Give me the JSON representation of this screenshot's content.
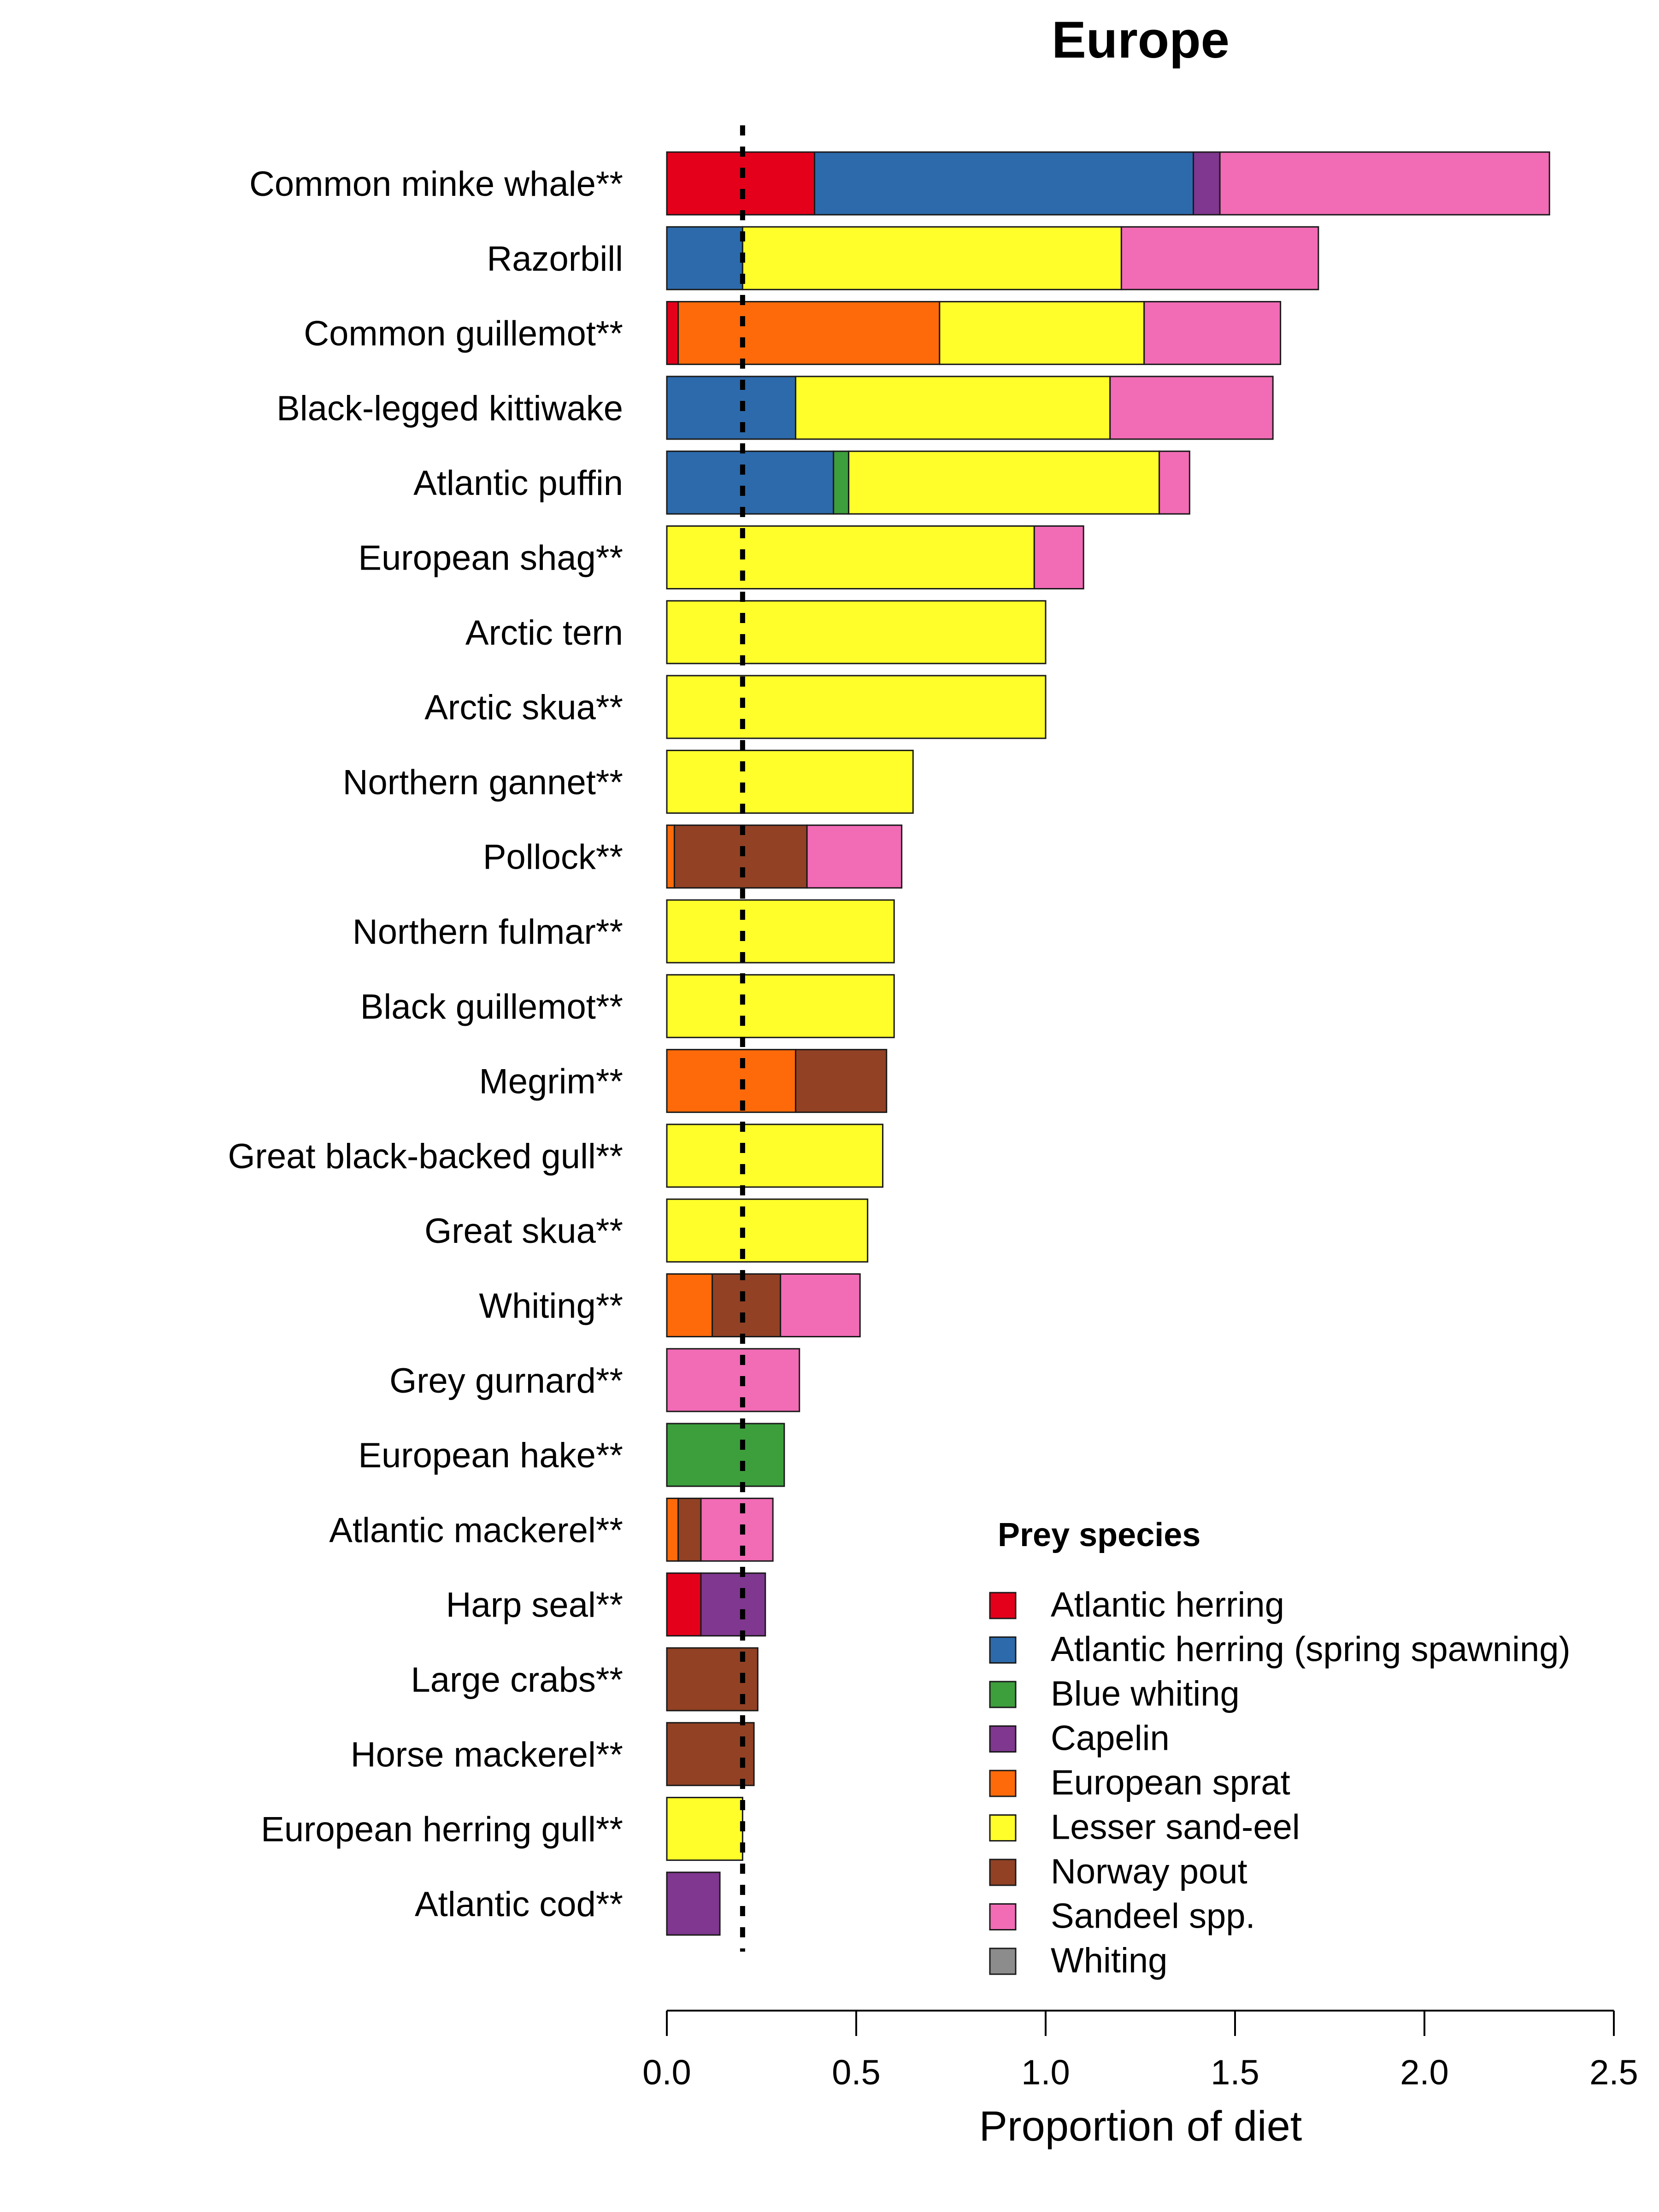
{
  "chart_data": {
    "type": "bar",
    "orientation": "horizontal",
    "stacked": true,
    "title": "Europe",
    "xlabel": "Proportion of diet",
    "ylabel": "",
    "xlim": [
      0,
      2.5
    ],
    "xticks": [
      "0.0",
      "0.5",
      "1.0",
      "1.5",
      "2.0",
      "2.5"
    ],
    "reference_line": {
      "x": 0.2,
      "style": "dotted"
    },
    "categories": [
      "Common minke whale**",
      "Razorbill",
      "Common guillemot**",
      "Black-legged kittiwake",
      "Atlantic puffin",
      "European shag**",
      "Arctic tern",
      "Arctic skua**",
      "Northern gannet**",
      "Pollock**",
      "Northern fulmar**",
      "Black guillemot**",
      "Megrim**",
      "Great black-backed gull**",
      "Great skua**",
      "Whiting**",
      "Grey gurnard**",
      "European hake**",
      "Atlantic mackerel**",
      "Harp seal**",
      "Large crabs**",
      "Horse mackerel**",
      "European herring gull**",
      "Atlantic cod**"
    ],
    "series": [
      {
        "name": "Atlantic herring",
        "color": "#e4001b",
        "values": [
          0.39,
          0,
          0.03,
          0,
          0,
          0,
          0,
          0,
          0,
          0,
          0,
          0,
          0,
          0,
          0,
          0,
          0,
          0,
          0,
          0.09,
          0,
          0,
          0,
          0
        ]
      },
      {
        "name": "Atlantic herring (spring spawning)",
        "color": "#2c6aac",
        "values": [
          1.0,
          0.2,
          0,
          0.34,
          0.44,
          0,
          0,
          0,
          0,
          0,
          0,
          0,
          0,
          0,
          0,
          0,
          0,
          0,
          0,
          0,
          0,
          0,
          0,
          0
        ]
      },
      {
        "name": "Blue whiting",
        "color": "#3c9f3c",
        "values": [
          0,
          0,
          0,
          0,
          0.04,
          0,
          0,
          0,
          0,
          0,
          0,
          0,
          0,
          0,
          0,
          0,
          0,
          0.31,
          0,
          0,
          0,
          0,
          0,
          0
        ]
      },
      {
        "name": "Capelin",
        "color": "#7f378f",
        "values": [
          0.07,
          0,
          0,
          0,
          0,
          0,
          0,
          0,
          0,
          0,
          0,
          0,
          0,
          0,
          0,
          0,
          0,
          0,
          0,
          0.17,
          0,
          0,
          0,
          0.14
        ]
      },
      {
        "name": "European sprat",
        "color": "#fe6a0a",
        "values": [
          0,
          0,
          0.69,
          0,
          0,
          0,
          0,
          0,
          0,
          0.02,
          0,
          0,
          0.34,
          0,
          0,
          0.12,
          0,
          0,
          0.03,
          0,
          0,
          0,
          0,
          0
        ]
      },
      {
        "name": "Lesser sand-eel",
        "color": "#fffe2a",
        "values": [
          0,
          1.0,
          0.54,
          0.83,
          0.82,
          0.97,
          1.0,
          1.0,
          0.65,
          0,
          0.6,
          0.6,
          0,
          0.57,
          0.53,
          0,
          0,
          0,
          0,
          0,
          0,
          0,
          0.2,
          0
        ]
      },
      {
        "name": "Norway pout",
        "color": "#924124",
        "values": [
          0,
          0,
          0,
          0,
          0,
          0,
          0,
          0,
          0,
          0.35,
          0,
          0,
          0.24,
          0,
          0,
          0.18,
          0,
          0,
          0.06,
          0,
          0.24,
          0.23,
          0,
          0
        ]
      },
      {
        "name": "Sandeel spp.",
        "color": "#f26bb5",
        "values": [
          0.87,
          0.52,
          0.36,
          0.43,
          0.08,
          0.13,
          0,
          0,
          0,
          0.25,
          0,
          0,
          0,
          0,
          0,
          0.21,
          0.35,
          0,
          0.19,
          0,
          0,
          0,
          0,
          0
        ]
      },
      {
        "name": "Whiting",
        "color": "#8c8c8c",
        "values": [
          0,
          0,
          0,
          0,
          0,
          0,
          0,
          0,
          0,
          0,
          0,
          0,
          0,
          0,
          0,
          0,
          0,
          0,
          0,
          0,
          0,
          0,
          0,
          0
        ]
      }
    ],
    "legend": {
      "title": "Prey species",
      "placement": "bottom-right"
    }
  }
}
